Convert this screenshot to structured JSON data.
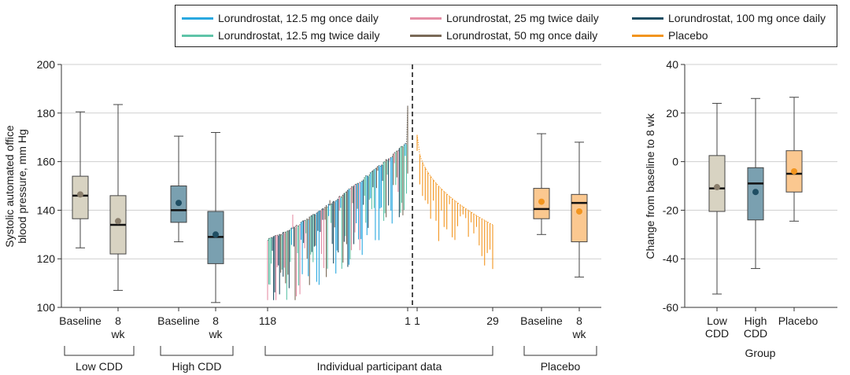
{
  "legend": [
    {
      "label": "Lorundrostat, 12.5 mg once daily",
      "color": "#29a8e0"
    },
    {
      "label": "Lorundrostat, 25 mg twice daily",
      "color": "#e58fa6"
    },
    {
      "label": "Lorundrostat, 100 mg once daily",
      "color": "#1f4e63"
    },
    {
      "label": "Lorundrostat, 12.5 mg twice daily",
      "color": "#5fc4a8"
    },
    {
      "label": "Lorundrostat, 50 mg once daily",
      "color": "#7a6a58"
    },
    {
      "label": "Placebo",
      "color": "#f2951f"
    }
  ],
  "chart_data": [
    {
      "type": "box",
      "ylabel": "Systolic automated office blood pressure, mm Hg",
      "ylabel_lines": [
        "Systolic automated office",
        "blood pressure, mm Hg"
      ],
      "ylim": [
        100,
        200
      ],
      "yticks": [
        100,
        120,
        140,
        160,
        180,
        200
      ],
      "grid": true,
      "groups": [
        {
          "label": "Low CDD",
          "fill": "#d8d3c2",
          "mean_color": "#8a7e6c",
          "boxes": [
            {
              "label": "Baseline",
              "whisker_low": 124.5,
              "q1": 136.5,
              "median": 146,
              "q3": 154,
              "whisker_high": 180.5,
              "mean": 146.5
            },
            {
              "label": "8 wk",
              "whisker_low": 107,
              "q1": 122,
              "median": 134,
              "q3": 146,
              "whisker_high": 183.5,
              "mean": 135.5
            }
          ]
        },
        {
          "label": "High CDD",
          "fill": "#7aa0b0",
          "mean_color": "#1f4e63",
          "boxes": [
            {
              "label": "Baseline",
              "whisker_low": 127,
              "q1": 135,
              "median": 140,
              "q3": 150,
              "whisker_high": 170.5,
              "mean": 143
            },
            {
              "label": "8 wk",
              "whisker_low": 102,
              "q1": 118,
              "median": 129,
              "q3": 139.5,
              "whisker_high": 172,
              "mean": 130
            }
          ]
        },
        {
          "label": "Placebo",
          "fill": "#fbc890",
          "mean_color": "#f2951f",
          "boxes": [
            {
              "label": "Baseline",
              "whisker_low": 130,
              "q1": 136.5,
              "median": 140.5,
              "q3": 149,
              "whisker_high": 171.5,
              "mean": 143.5
            },
            {
              "label": "8 wk",
              "whisker_low": 112.5,
              "q1": 127,
              "median": 143,
              "q3": 146.5,
              "whisker_high": 168,
              "mean": 139.5
            }
          ]
        }
      ],
      "individual": {
        "label": "Individual participant data",
        "lorundrostat": {
          "n": 118,
          "start_label": "118",
          "end_label": "1",
          "baseline_min": 128,
          "baseline_max": 183
        },
        "placebo": {
          "n": 29,
          "start_label": "1",
          "end_label": "29",
          "baseline_max": 171,
          "baseline_min": 134
        }
      }
    },
    {
      "type": "box",
      "ylabel": "Change from baseline to 8 wk",
      "xlabel": "Group",
      "ylim": [
        -60,
        40
      ],
      "yticks": [
        -60,
        -40,
        -20,
        0,
        20,
        40
      ],
      "grid": true,
      "categories": [
        "Low CDD",
        "High CDD",
        "Placebo"
      ],
      "category_lines": [
        [
          "Low",
          "CDD"
        ],
        [
          "High",
          "CDD"
        ],
        [
          "Placebo"
        ]
      ],
      "boxes": [
        {
          "whisker_low": -54.5,
          "q1": -20.5,
          "median": -11,
          "q3": 2.5,
          "whisker_high": 24,
          "mean": -10.5,
          "fill": "#d8d3c2",
          "mean_color": "#8a7e6c"
        },
        {
          "whisker_low": -44,
          "q1": -24,
          "median": -9,
          "q3": -2.5,
          "whisker_high": 26,
          "mean": -12.5,
          "fill": "#7aa0b0",
          "mean_color": "#1f4e63"
        },
        {
          "whisker_low": -24.5,
          "q1": -12.5,
          "median": -5,
          "q3": 4.5,
          "whisker_high": 26.5,
          "mean": -4,
          "fill": "#fbc890",
          "mean_color": "#f2951f"
        }
      ]
    }
  ]
}
